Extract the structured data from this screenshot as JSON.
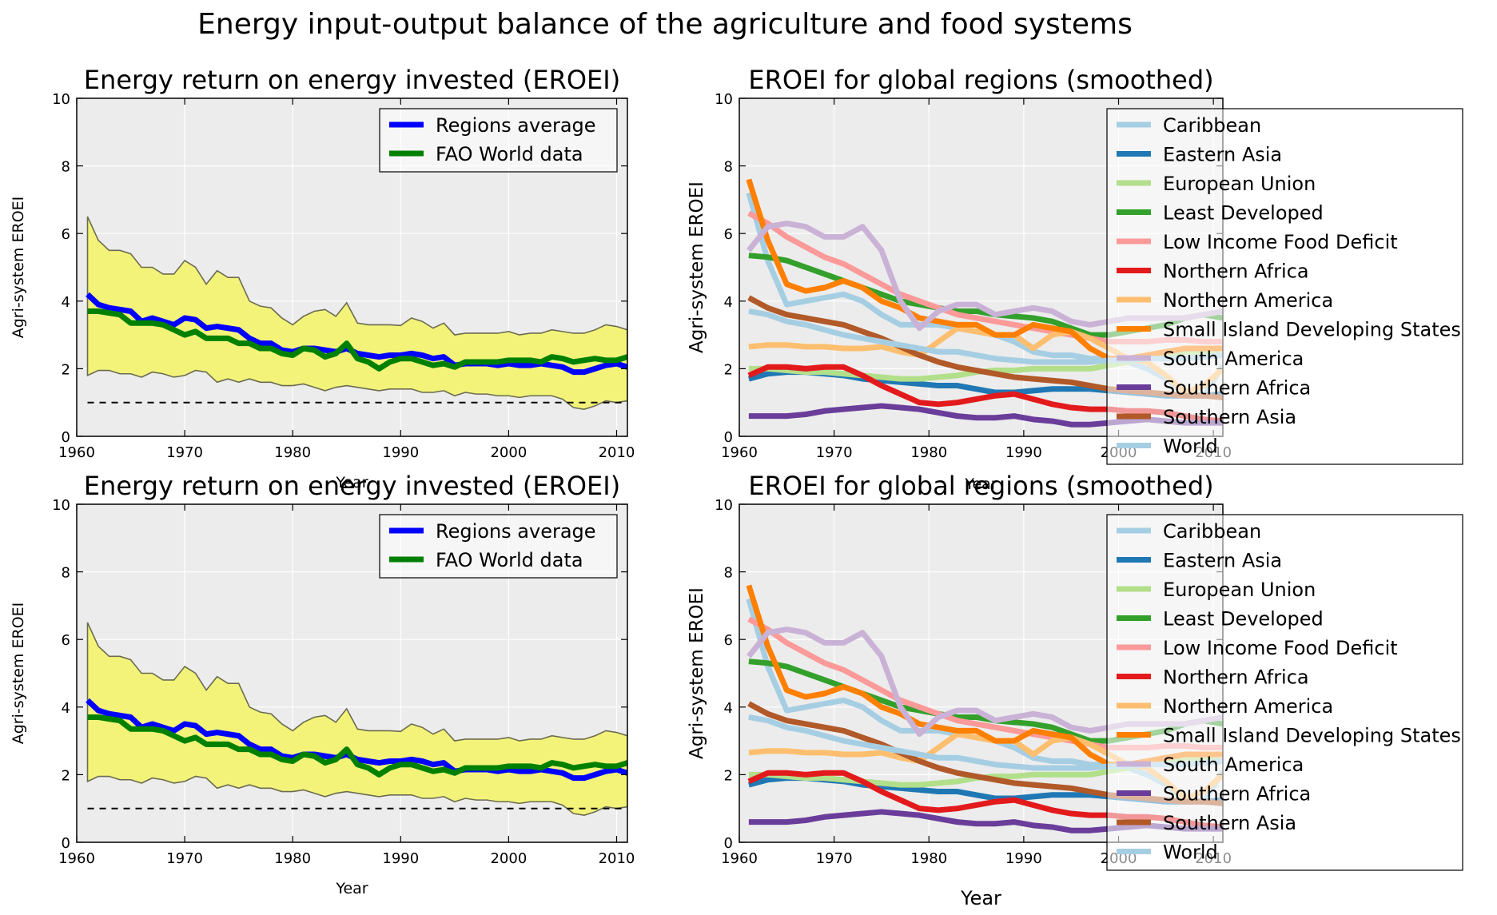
{
  "figure": {
    "suptitle": "Energy input-output balance of the agriculture and food systems"
  },
  "colors": {
    "panel_bg": "#ececec",
    "band_fill": "#f3f37a",
    "band_edge": "#6b6b50",
    "regions_average": "#0000ff",
    "fao_world": "#008000"
  },
  "chart_data": [
    {
      "type": "line",
      "title": "Energy return on energy invested (EROEI)",
      "xlabel": "Year",
      "ylabel": "Agri-system EROEI",
      "xlim": [
        1960,
        2011
      ],
      "ylim": [
        0,
        10
      ],
      "xticks": [
        "1960",
        "1970",
        "1980",
        "1990",
        "2000",
        "2010"
      ],
      "yticks": [
        "0",
        "2",
        "4",
        "6",
        "8",
        "10"
      ],
      "grid": true,
      "legend": "top-right",
      "x": [
        1961,
        1962,
        1963,
        1964,
        1965,
        1966,
        1967,
        1968,
        1969,
        1970,
        1971,
        1972,
        1973,
        1974,
        1975,
        1976,
        1977,
        1978,
        1979,
        1980,
        1981,
        1982,
        1983,
        1984,
        1985,
        1986,
        1987,
        1988,
        1989,
        1990,
        1991,
        1992,
        1993,
        1994,
        1995,
        1996,
        1997,
        1998,
        1999,
        2000,
        2001,
        2002,
        2003,
        2004,
        2005,
        2006,
        2007,
        2008,
        2009,
        2010,
        2011
      ],
      "band": {
        "upper": [
          6.5,
          5.8,
          5.5,
          5.5,
          5.4,
          5.0,
          5.0,
          4.8,
          4.8,
          5.2,
          5.0,
          4.5,
          4.9,
          4.7,
          4.7,
          4.0,
          3.85,
          3.8,
          3.5,
          3.3,
          3.55,
          3.7,
          3.75,
          3.55,
          3.95,
          3.35,
          3.3,
          3.3,
          3.3,
          3.28,
          3.5,
          3.4,
          3.2,
          3.35,
          3.0,
          3.05,
          3.05,
          3.05,
          3.05,
          3.1,
          3.0,
          3.05,
          3.05,
          3.15,
          3.1,
          3.05,
          3.05,
          3.15,
          3.3,
          3.25,
          3.15
        ],
        "lower": [
          1.8,
          1.95,
          1.95,
          1.85,
          1.85,
          1.75,
          1.9,
          1.85,
          1.75,
          1.8,
          1.95,
          1.9,
          1.6,
          1.7,
          1.6,
          1.7,
          1.6,
          1.6,
          1.5,
          1.5,
          1.55,
          1.45,
          1.35,
          1.45,
          1.5,
          1.45,
          1.4,
          1.35,
          1.4,
          1.4,
          1.4,
          1.3,
          1.3,
          1.35,
          1.2,
          1.3,
          1.25,
          1.25,
          1.2,
          1.2,
          1.15,
          1.2,
          1.2,
          1.2,
          1.1,
          0.85,
          0.8,
          0.9,
          1.05,
          1.0,
          1.05
        ]
      },
      "reference_line": 1,
      "series": [
        {
          "name": "Regions average",
          "values": [
            4.2,
            3.9,
            3.8,
            3.75,
            3.7,
            3.4,
            3.5,
            3.4,
            3.3,
            3.5,
            3.45,
            3.2,
            3.25,
            3.2,
            3.15,
            2.9,
            2.75,
            2.75,
            2.55,
            2.5,
            2.6,
            2.6,
            2.55,
            2.5,
            2.6,
            2.45,
            2.4,
            2.35,
            2.4,
            2.4,
            2.45,
            2.4,
            2.3,
            2.35,
            2.1,
            2.15,
            2.15,
            2.15,
            2.1,
            2.15,
            2.1,
            2.1,
            2.15,
            2.1,
            2.05,
            1.9,
            1.9,
            2.0,
            2.1,
            2.15,
            2.05
          ]
        },
        {
          "name": "FAO World data",
          "values": [
            3.7,
            3.7,
            3.65,
            3.6,
            3.35,
            3.35,
            3.35,
            3.3,
            3.15,
            3.0,
            3.1,
            2.9,
            2.9,
            2.9,
            2.75,
            2.75,
            2.6,
            2.6,
            2.45,
            2.4,
            2.6,
            2.55,
            2.35,
            2.45,
            2.75,
            2.3,
            2.2,
            2.0,
            2.2,
            2.3,
            2.3,
            2.2,
            2.1,
            2.15,
            2.05,
            2.2,
            2.2,
            2.2,
            2.2,
            2.25,
            2.25,
            2.25,
            2.2,
            2.35,
            2.3,
            2.2,
            2.25,
            2.3,
            2.25,
            2.25,
            2.35
          ]
        }
      ]
    },
    {
      "type": "line",
      "title": "EROEI for global regions (smoothed)",
      "xlabel": "Year",
      "ylabel": "Agri-system EROEI",
      "xlim": [
        1960,
        2011
      ],
      "ylim": [
        0,
        10
      ],
      "xticks": [
        "1960",
        "1970",
        "1980",
        "1990",
        "2000",
        "2010"
      ],
      "yticks": [
        "0",
        "2",
        "4",
        "6",
        "8",
        "10"
      ],
      "grid": true,
      "legend": "right, overlapping plot edge",
      "x": [
        1961,
        1963,
        1965,
        1967,
        1969,
        1971,
        1973,
        1975,
        1977,
        1979,
        1981,
        1983,
        1985,
        1987,
        1989,
        1991,
        1993,
        1995,
        1997,
        1999,
        2001,
        2003,
        2005,
        2007,
        2009,
        2011
      ],
      "series": [
        {
          "name": "Caribbean",
          "color": "#a6cee3",
          "values": [
            7.2,
            5.2,
            3.9,
            4.0,
            4.1,
            4.2,
            4.0,
            3.6,
            3.3,
            3.3,
            3.3,
            3.2,
            3.1,
            3.0,
            2.8,
            2.5,
            2.4,
            2.4,
            2.3,
            2.3,
            2.2,
            2.0,
            1.7,
            1.3,
            1.2,
            2.1
          ]
        },
        {
          "name": "Eastern Asia",
          "color": "#1f78b4",
          "values": [
            1.7,
            1.85,
            1.9,
            1.9,
            1.85,
            1.8,
            1.7,
            1.65,
            1.6,
            1.55,
            1.5,
            1.5,
            1.4,
            1.3,
            1.3,
            1.35,
            1.4,
            1.4,
            1.4,
            1.35,
            1.3,
            1.25,
            1.2,
            1.2,
            1.2,
            1.25
          ]
        },
        {
          "name": "European Union",
          "color": "#b2df8a",
          "values": [
            2.0,
            2.0,
            1.95,
            1.9,
            1.9,
            1.85,
            1.8,
            1.75,
            1.7,
            1.7,
            1.75,
            1.8,
            1.9,
            1.95,
            1.95,
            2.0,
            2.0,
            2.0,
            2.0,
            2.1,
            2.2,
            2.3,
            2.4,
            2.5,
            2.5,
            2.4
          ]
        },
        {
          "name": "Least Developed",
          "color": "#33a02c",
          "values": [
            5.35,
            5.3,
            5.2,
            5.0,
            4.8,
            4.6,
            4.4,
            4.2,
            4.0,
            3.9,
            3.8,
            3.7,
            3.7,
            3.6,
            3.55,
            3.5,
            3.4,
            3.2,
            3.0,
            3.0,
            3.1,
            3.2,
            3.3,
            3.5,
            3.6,
            3.5
          ]
        },
        {
          "name": "Low Income Food Deficit",
          "color": "#fb9a99",
          "values": [
            6.6,
            6.3,
            5.9,
            5.6,
            5.3,
            5.1,
            4.8,
            4.5,
            4.2,
            4.0,
            3.8,
            3.6,
            3.5,
            3.4,
            3.3,
            3.2,
            3.1,
            3.0,
            2.9,
            2.8,
            2.8,
            2.8,
            2.85,
            2.85,
            2.8,
            2.8
          ]
        },
        {
          "name": "Northern Africa",
          "color": "#e31a1c",
          "values": [
            1.8,
            2.05,
            2.05,
            2.0,
            2.05,
            2.05,
            1.8,
            1.5,
            1.25,
            1.0,
            0.95,
            1.0,
            1.1,
            1.2,
            1.25,
            1.1,
            0.95,
            0.85,
            0.8,
            0.8,
            0.75,
            0.75,
            0.7,
            0.6,
            0.5,
            0.45
          ]
        },
        {
          "name": "Northern America",
          "color": "#fdbf6f",
          "values": [
            2.65,
            2.7,
            2.7,
            2.65,
            2.65,
            2.6,
            2.6,
            2.65,
            2.5,
            2.4,
            2.8,
            3.2,
            3.1,
            3.0,
            3.0,
            2.6,
            3.0,
            3.1,
            2.9,
            2.6,
            2.3,
            2.2,
            1.8,
            1.3,
            1.5,
            2.0
          ]
        },
        {
          "name": "Small Island Developing States",
          "color": "#ff7f00",
          "values": [
            7.6,
            5.8,
            4.5,
            4.3,
            4.4,
            4.6,
            4.4,
            4.0,
            3.8,
            3.5,
            3.4,
            3.3,
            3.3,
            3.0,
            3.0,
            3.3,
            3.2,
            3.1,
            2.6,
            2.3,
            2.3,
            2.4,
            2.5,
            2.6,
            2.6,
            2.6
          ]
        },
        {
          "name": "South America",
          "color": "#cab2d6",
          "values": [
            5.5,
            6.2,
            6.3,
            6.2,
            5.9,
            5.9,
            6.2,
            5.5,
            4.0,
            3.2,
            3.7,
            3.9,
            3.9,
            3.6,
            3.7,
            3.8,
            3.7,
            3.4,
            3.3,
            3.4,
            3.5,
            3.5,
            3.5,
            3.5,
            3.6,
            3.7
          ]
        },
        {
          "name": "Southern Africa",
          "color": "#6a3d9a",
          "values": [
            0.6,
            0.6,
            0.6,
            0.65,
            0.75,
            0.8,
            0.85,
            0.9,
            0.85,
            0.8,
            0.7,
            0.6,
            0.55,
            0.55,
            0.6,
            0.5,
            0.45,
            0.35,
            0.35,
            0.4,
            0.45,
            0.5,
            0.45,
            0.4,
            0.4,
            0.4
          ]
        },
        {
          "name": "Southern Asia",
          "color": "#b15928",
          "values": [
            4.1,
            3.8,
            3.6,
            3.5,
            3.4,
            3.3,
            3.1,
            2.9,
            2.65,
            2.4,
            2.2,
            2.05,
            1.95,
            1.85,
            1.75,
            1.7,
            1.65,
            1.6,
            1.5,
            1.4,
            1.35,
            1.3,
            1.25,
            1.2,
            1.2,
            1.15
          ]
        },
        {
          "name": "World",
          "color": "#a6cee3",
          "values": [
            3.7,
            3.6,
            3.4,
            3.3,
            3.15,
            3.0,
            2.9,
            2.8,
            2.7,
            2.6,
            2.5,
            2.5,
            2.4,
            2.3,
            2.25,
            2.2,
            2.2,
            2.2,
            2.2,
            2.25,
            2.25,
            2.3,
            2.3,
            2.3,
            2.35,
            2.4
          ]
        }
      ]
    },
    {
      "type": "line",
      "title": "Energy return on energy invested (EROEI)",
      "xlabel": "Year",
      "ylabel": "Agri-system EROEI",
      "xlim": [
        1960,
        2011
      ],
      "ylim": [
        0,
        10
      ],
      "xticks": [
        "1960",
        "1970",
        "1980",
        "1990",
        "2000",
        "2010"
      ],
      "yticks": [
        "0",
        "2",
        "4",
        "6",
        "8",
        "10"
      ],
      "grid": true,
      "legend": "top-right",
      "same_as": 0
    },
    {
      "type": "line",
      "title": "EROEI for global regions (smoothed)",
      "xlabel": "Year",
      "ylabel": "Agri-system EROEI",
      "xlim": [
        1960,
        2011
      ],
      "ylim": [
        0,
        10
      ],
      "xticks": [
        "1960",
        "1970",
        "1980",
        "1990",
        "2000",
        "2010"
      ],
      "yticks": [
        "0",
        "2",
        "4",
        "6",
        "8",
        "10"
      ],
      "grid": true,
      "legend": "right, overlapping plot edge",
      "same_as": 1
    }
  ]
}
